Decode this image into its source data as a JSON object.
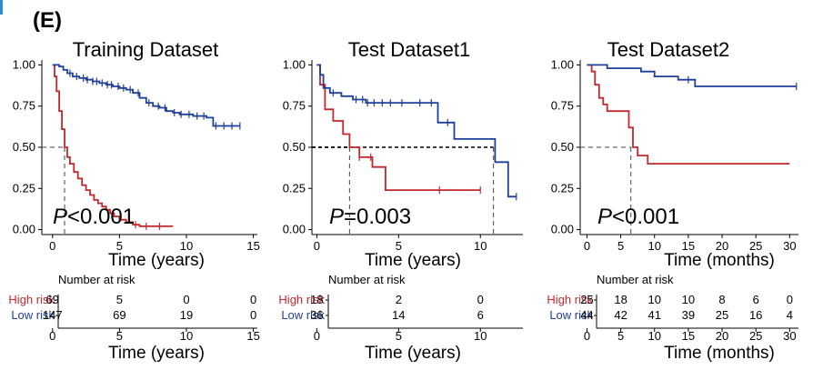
{
  "panel_label": "(E)",
  "colors": {
    "high": "#c0282d",
    "low": "#1f3f99",
    "axis": "#000000",
    "ref": "#444444"
  },
  "chart_data": [
    {
      "type": "line",
      "title": "Training Dataset",
      "xlabel": "Time (years)",
      "ylabel": "",
      "xlim": [
        -0.8,
        15.3
      ],
      "ylim": [
        -0.03,
        1.03
      ],
      "x_ticks": [
        0,
        5,
        10,
        15
      ],
      "y_ticks": [
        0.0,
        0.25,
        0.5,
        0.75,
        1.0
      ],
      "y_tick_labels": [
        "0.00",
        "0.25",
        "0.50",
        "0.75",
        "1.00"
      ],
      "p_value": "<0.001",
      "p_value_prefix": "P",
      "median_lines": [
        {
          "x": 0.9,
          "y": 0.5,
          "dash": "long"
        }
      ],
      "series": [
        {
          "name": "High risk",
          "color_key": "high",
          "x": [
            0,
            0.15,
            0.3,
            0.5,
            0.7,
            0.9,
            1.1,
            1.3,
            1.6,
            1.9,
            2.2,
            2.5,
            2.8,
            3.1,
            3.4,
            3.7,
            4.0,
            4.3,
            4.6,
            5.0,
            5.5,
            6.0,
            6.5,
            7.0,
            9.0
          ],
          "y": [
            1.0,
            0.93,
            0.84,
            0.72,
            0.61,
            0.5,
            0.44,
            0.4,
            0.35,
            0.31,
            0.27,
            0.24,
            0.21,
            0.18,
            0.16,
            0.14,
            0.12,
            0.1,
            0.08,
            0.06,
            0.045,
            0.03,
            0.02,
            0.02,
            0.02
          ],
          "censors": [
            6.2,
            7.0,
            8.0
          ]
        },
        {
          "name": "Low risk",
          "color_key": "low",
          "x": [
            0,
            0.2,
            0.5,
            0.8,
            1.1,
            1.5,
            2.0,
            2.5,
            3.0,
            3.5,
            4.0,
            4.5,
            5.0,
            5.5,
            6.0,
            6.5,
            7.0,
            7.5,
            8.0,
            8.5,
            9.0,
            9.5,
            10.0,
            10.5,
            11.0,
            11.5,
            12.0,
            12.5,
            13.0,
            13.5,
            14.0
          ],
          "y": [
            1.0,
            1.0,
            0.99,
            0.97,
            0.95,
            0.93,
            0.92,
            0.91,
            0.9,
            0.89,
            0.88,
            0.87,
            0.86,
            0.85,
            0.83,
            0.8,
            0.77,
            0.75,
            0.74,
            0.72,
            0.71,
            0.7,
            0.7,
            0.69,
            0.69,
            0.68,
            0.63,
            0.63,
            0.63,
            0.63,
            0.63
          ],
          "censors": [
            1.3,
            1.8,
            2.3,
            2.6,
            3.0,
            3.3,
            3.7,
            4.1,
            4.4,
            4.9,
            5.3,
            5.8,
            6.4,
            7.2,
            7.9,
            8.4,
            9.1,
            9.6,
            10.2,
            10.8,
            11.3,
            12.2,
            12.8,
            13.4,
            14.0
          ]
        }
      ]
    },
    {
      "type": "line",
      "title": "Test Dataset1",
      "xlabel": "Time (years)",
      "ylabel": "",
      "xlim": [
        -0.3,
        12.6
      ],
      "ylim": [
        -0.03,
        1.03
      ],
      "x_ticks": [
        0,
        5,
        10
      ],
      "y_ticks": [
        0.0,
        0.25,
        0.5,
        0.75,
        1.0
      ],
      "y_tick_labels": [
        "0.00",
        "0.25",
        "0.50",
        "0.75",
        "1.00"
      ],
      "p_value": "=0.003",
      "p_value_prefix": "P",
      "median_lines": [
        {
          "x": 2.0,
          "y": 0.5,
          "dash": "short"
        },
        {
          "x": 10.8,
          "y": 0.5,
          "dash": "short"
        }
      ],
      "series": [
        {
          "name": "High risk",
          "color_key": "high",
          "x": [
            0,
            0.2,
            0.5,
            1.0,
            1.6,
            2.0,
            2.6,
            3.4,
            4.2,
            5.5,
            10.0
          ],
          "y": [
            1.0,
            0.88,
            0.73,
            0.66,
            0.58,
            0.5,
            0.44,
            0.38,
            0.24,
            0.24,
            0.24
          ],
          "censors": [
            2.6,
            3.3,
            7.5,
            10.0
          ]
        },
        {
          "name": "Low risk",
          "color_key": "low",
          "x": [
            0,
            0.2,
            0.4,
            0.8,
            1.5,
            2.2,
            3.0,
            5.0,
            7.0,
            7.4,
            8.4,
            10.9,
            11.7,
            12.2
          ],
          "y": [
            1.0,
            0.94,
            0.86,
            0.83,
            0.81,
            0.79,
            0.77,
            0.77,
            0.77,
            0.65,
            0.55,
            0.41,
            0.2,
            0.2
          ],
          "censors": [
            1.0,
            2.4,
            2.8,
            3.1,
            3.5,
            4.0,
            4.5,
            5.2,
            6.3,
            7.0,
            8.0,
            12.2
          ]
        }
      ]
    },
    {
      "type": "line",
      "title": "Test Dataset2",
      "xlabel": "Time (months)",
      "ylabel": "",
      "xlim": [
        -1.0,
        31.3
      ],
      "ylim": [
        -0.03,
        1.03
      ],
      "x_ticks": [
        0,
        5,
        10,
        15,
        20,
        25,
        30
      ],
      "y_ticks": [
        0.0,
        0.25,
        0.5,
        0.75,
        1.0
      ],
      "y_tick_labels": [
        "0.00",
        "0.25",
        "0.50",
        "0.75",
        "1.00"
      ],
      "p_value": "<0.001",
      "p_value_prefix": "P",
      "median_lines": [
        {
          "x": 6.5,
          "y": 0.5,
          "dash": "long"
        }
      ],
      "series": [
        {
          "name": "High risk",
          "color_key": "high",
          "x": [
            0,
            0.7,
            1.2,
            1.8,
            2.4,
            3.0,
            5.5,
            6.2,
            6.8,
            7.5,
            9.0,
            12.0,
            30.0
          ],
          "y": [
            1.0,
            0.96,
            0.88,
            0.8,
            0.76,
            0.72,
            0.72,
            0.62,
            0.5,
            0.45,
            0.4,
            0.4,
            0.4
          ],
          "censors": []
        },
        {
          "name": "Low risk",
          "color_key": "low",
          "x": [
            0,
            1.5,
            3.0,
            8.0,
            10.0,
            13.5,
            16.0,
            31.0
          ],
          "y": [
            1.0,
            1.0,
            0.98,
            0.96,
            0.93,
            0.91,
            0.87,
            0.87
          ],
          "censors": [
            15.0,
            31.0
          ]
        }
      ]
    }
  ],
  "risk_tables": [
    {
      "header": "Number at risk",
      "xlabel": "Time (years)",
      "x_ticks": [
        0,
        5,
        10,
        15
      ],
      "xlim": [
        -0.8,
        15.3
      ],
      "rows": [
        {
          "label": "High risk",
          "color_key": "high",
          "values": [
            "69",
            "5",
            "0",
            "0"
          ]
        },
        {
          "label": "Low risk",
          "color_key": "low",
          "values": [
            "147",
            "69",
            "19",
            "0"
          ]
        }
      ]
    },
    {
      "header": "Number at risk",
      "xlabel": "Time (years)",
      "x_ticks": [
        0,
        5,
        10
      ],
      "xlim": [
        -0.3,
        12.6
      ],
      "rows": [
        {
          "label": "High risk",
          "color_key": "high",
          "values": [
            "18",
            "2",
            "0"
          ]
        },
        {
          "label": "Low risk",
          "color_key": "low",
          "values": [
            "36",
            "14",
            "6"
          ]
        }
      ]
    },
    {
      "header": "Number at risk",
      "xlabel": "Time (months)",
      "x_ticks": [
        0,
        5,
        10,
        15,
        20,
        25,
        30
      ],
      "xlim": [
        -1.0,
        31.3
      ],
      "rows": [
        {
          "label": "High risk",
          "color_key": "high",
          "values": [
            "25",
            "18",
            "10",
            "10",
            "8",
            "6",
            "0"
          ]
        },
        {
          "label": "Low risk",
          "color_key": "low",
          "values": [
            "44",
            "42",
            "41",
            "39",
            "25",
            "16",
            "4"
          ]
        }
      ]
    }
  ]
}
